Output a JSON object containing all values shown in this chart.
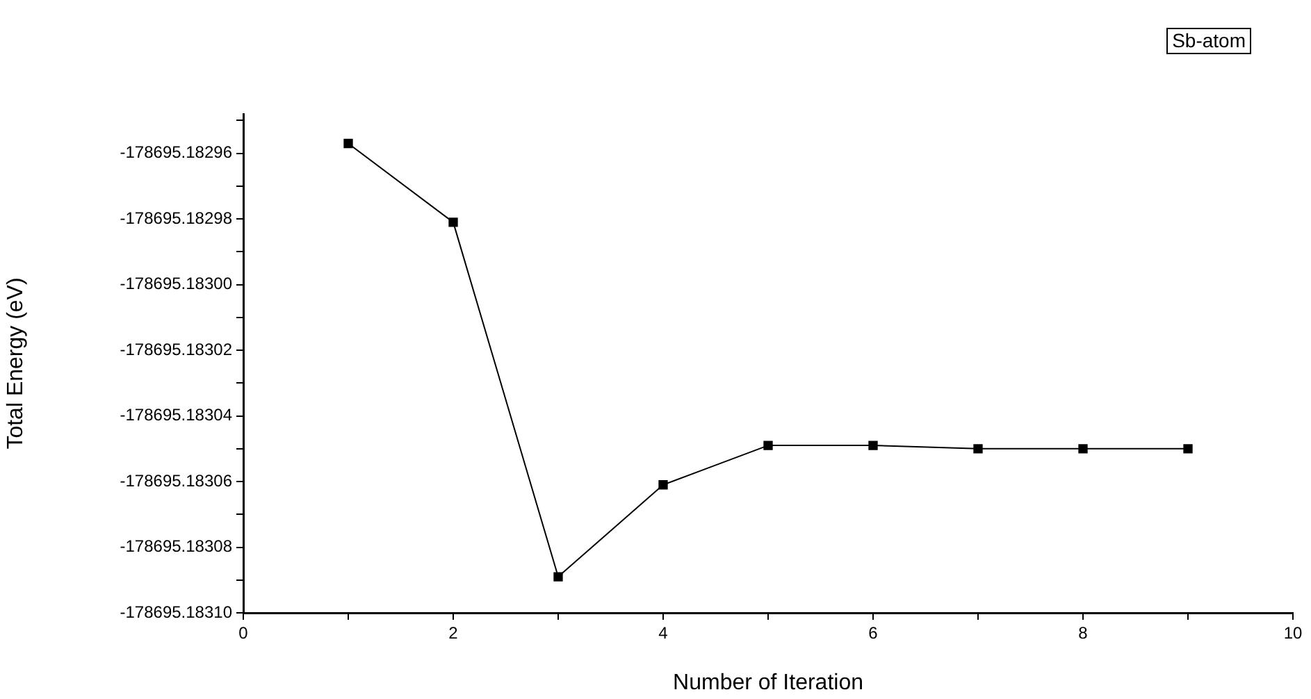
{
  "chart_data": {
    "type": "line",
    "xlabel": "Number of Iteration",
    "ylabel": "Total Energy (eV)",
    "annotations": [
      "Sb-atom"
    ],
    "x": [
      1,
      2,
      3,
      4,
      5,
      6,
      7,
      8,
      9
    ],
    "series": [
      {
        "color": "#000000",
        "values": [
          -178695.182957,
          -178695.182981,
          -178695.183089,
          -178695.183061,
          -178695.183049,
          -178695.183049,
          -178695.18305,
          -178695.18305,
          -178695.18305
        ]
      }
    ],
    "xlim": [
      0,
      10
    ],
    "xticks": [
      0,
      {
        "value": 1,
        "label": null
      },
      2,
      {
        "value": 3,
        "label": null
      },
      4,
      {
        "value": 5,
        "label": null
      },
      6,
      {
        "value": 7,
        "label": null
      },
      8,
      {
        "value": 9,
        "label": null
      },
      10
    ],
    "ylim": [
      -178695.1831,
      -178695.182948
    ],
    "yticks": [
      {
        "value": -178695.1831,
        "label": "-178695.18310"
      },
      {
        "value": -178695.18309,
        "label": null
      },
      {
        "value": -178695.18308,
        "label": "-178695.18308"
      },
      {
        "value": -178695.18307,
        "label": null
      },
      {
        "value": -178695.18306,
        "label": "-178695.18306"
      },
      {
        "value": -178695.18305,
        "label": null
      },
      {
        "value": -178695.18304,
        "label": "-178695.18304"
      },
      {
        "value": -178695.18303,
        "label": null
      },
      {
        "value": -178695.18302,
        "label": "-178695.18302"
      },
      {
        "value": -178695.18301,
        "label": null
      },
      {
        "value": -178695.183,
        "label": "-178695.18300"
      },
      {
        "value": -178695.18299,
        "label": null
      },
      {
        "value": -178695.18298,
        "label": "-178695.18298"
      },
      {
        "value": -178695.18297,
        "label": null
      },
      {
        "value": -178695.18296,
        "label": "-178695.18296"
      },
      {
        "value": -178695.18295,
        "label": null
      }
    ],
    "grid": false,
    "legend": false,
    "marker": "square",
    "line_style": "solid"
  }
}
